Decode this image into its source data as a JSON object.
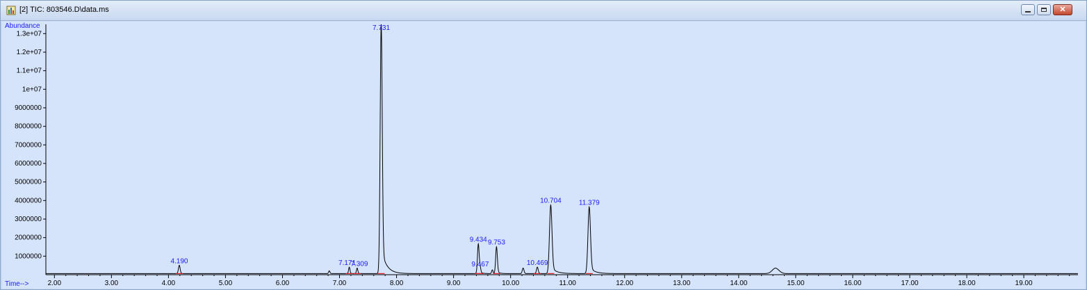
{
  "window": {
    "title": "[2] TIC: 803546.D\\data.ms",
    "icon": "chromatogram-app-icon",
    "buttons": {
      "minimize": "minimize-icon",
      "maximize": "maximize-icon",
      "close": "close-icon"
    },
    "close_color": "#c2472d"
  },
  "chart_data": {
    "type": "line",
    "title": "",
    "xlabel": "Time-->",
    "ylabel": "Abundance",
    "xlim": [
      1.85,
      19.95
    ],
    "ylim": [
      0,
      13500000
    ],
    "grid": false,
    "line_color": "#000000",
    "label_color": "#1a1aff",
    "baseline_marker_color": "#e02020",
    "x_ticks": [
      2.0,
      3.0,
      4.0,
      5.0,
      6.0,
      7.0,
      8.0,
      9.0,
      10.0,
      11.0,
      12.0,
      13.0,
      14.0,
      15.0,
      16.0,
      17.0,
      18.0,
      19.0
    ],
    "x_tick_labels": [
      "2.00",
      "3.00",
      "4.00",
      "5.00",
      "6.00",
      "7.00",
      "8.00",
      "9.00",
      "10.00",
      "11.00",
      "12.00",
      "13.00",
      "14.00",
      "15.00",
      "16.00",
      "17.00",
      "18.00",
      "19.00"
    ],
    "y_ticks": [
      1000000,
      2000000,
      3000000,
      4000000,
      5000000,
      6000000,
      7000000,
      8000000,
      9000000,
      10000000,
      11000000,
      12000000,
      13000000
    ],
    "y_tick_labels": [
      "1000000",
      "2000000",
      "3000000",
      "4000000",
      "5000000",
      "6000000",
      "7000000",
      "8000000",
      "9000000",
      "1e+07",
      "1.1e+07",
      "1.2e+07",
      "1.3e+07"
    ],
    "peaks": [
      {
        "rt": 4.19,
        "label": "4.190",
        "height": 450000,
        "width": 0.015
      },
      {
        "rt": 6.82,
        "label": "",
        "height": 150000,
        "width": 0.012
      },
      {
        "rt": 7.171,
        "label": "7.171",
        "height": 350000,
        "width": 0.012
      },
      {
        "rt": 7.309,
        "label": "7.309",
        "height": 300000,
        "width": 0.012
      },
      {
        "rt": 7.731,
        "label": "7.731",
        "height": 13500000,
        "width": 0.018
      },
      {
        "rt": 9.434,
        "label": "9.434",
        "height": 1600000,
        "width": 0.015
      },
      {
        "rt": 9.467,
        "label": "9.467",
        "height": 250000,
        "width": 0.012
      },
      {
        "rt": 9.68,
        "label": "",
        "height": 200000,
        "width": 0.012
      },
      {
        "rt": 9.753,
        "label": "9.753",
        "height": 1450000,
        "width": 0.015
      },
      {
        "rt": 10.22,
        "label": "",
        "height": 300000,
        "width": 0.015
      },
      {
        "rt": 10.469,
        "label": "10.469",
        "height": 350000,
        "width": 0.015
      },
      {
        "rt": 10.704,
        "label": "10.704",
        "height": 3700000,
        "width": 0.022
      },
      {
        "rt": 11.379,
        "label": "11.379",
        "height": 3600000,
        "width": 0.022
      },
      {
        "rt": 14.65,
        "label": "",
        "height": 300000,
        "width": 0.06
      }
    ],
    "baseline": 60000
  }
}
